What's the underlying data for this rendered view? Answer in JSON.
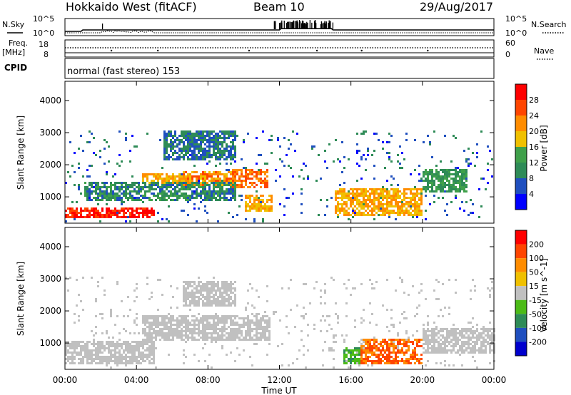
{
  "header": {
    "title": "Hokkaido West (fitACF)",
    "beam": "Beam 10",
    "date": "29/Aug/2017"
  },
  "top_panels": {
    "nsky_label": "N.Sky",
    "nsearch_label": "N.Search",
    "freq_label_1": "Freq.",
    "freq_label_2": "[MHz]",
    "nave_label": "Nave",
    "cpid_label": "CPID",
    "cpid_text": "normal (fast stereo) 153",
    "noise_ticks": [
      "10^5",
      "10^0"
    ],
    "freq_ticks": [
      "18",
      "8"
    ],
    "nave_ticks": [
      "60",
      "0"
    ]
  },
  "chart_data": [
    {
      "type": "heatmap",
      "title": "",
      "xlabel": "Time UT",
      "ylabel": "Slant Range [km]",
      "x_ticks": [
        "00:00",
        "04:00",
        "08:00",
        "12:00",
        "16:00",
        "20:00",
        "00:00"
      ],
      "xlim_hours": [
        0,
        24
      ],
      "y_ticks": [
        1000,
        2000,
        3000,
        4000
      ],
      "ylim": [
        180,
        4600
      ],
      "colorbar": {
        "label": "Power [dB]",
        "ticks": [
          4,
          8,
          12,
          16,
          20,
          24,
          28
        ],
        "range": [
          0,
          32
        ],
        "colors": [
          "#0000ff",
          "#1f4fbf",
          "#2e8b57",
          "#3fa04a",
          "#f0c000",
          "#ff8c00",
          "#ff4500",
          "#ff0000"
        ]
      },
      "regions": [
        {
          "t0": 0.0,
          "t1": 5.0,
          "r0": 380,
          "r1": 700,
          "value": 29
        },
        {
          "t0": 4.2,
          "t1": 6.6,
          "r0": 1450,
          "r1": 1750,
          "value": 20
        },
        {
          "t0": 6.5,
          "t1": 9.5,
          "r0": 1400,
          "r1": 1850,
          "value": 22
        },
        {
          "t0": 9.3,
          "t1": 11.3,
          "r0": 1300,
          "r1": 1900,
          "value": 24
        },
        {
          "t0": 10.0,
          "t1": 11.6,
          "r0": 600,
          "r1": 1100,
          "value": 20
        },
        {
          "t0": 15.0,
          "t1": 20.0,
          "r0": 450,
          "r1": 1300,
          "value": 20
        },
        {
          "t0": 20.0,
          "t1": 22.5,
          "r0": 1200,
          "r1": 1900,
          "value": 12
        },
        {
          "t0": 5.5,
          "t1": 9.5,
          "r0": 2200,
          "r1": 3100,
          "value": 8
        },
        {
          "t0": 1.0,
          "t1": 9.5,
          "r0": 900,
          "r1": 1500,
          "value": 10
        }
      ]
    },
    {
      "type": "heatmap",
      "title": "",
      "xlabel": "Time UT",
      "ylabel": "Slant Range [km]",
      "x_ticks": [
        "00:00",
        "04:00",
        "08:00",
        "12:00",
        "16:00",
        "20:00",
        "00:00"
      ],
      "xlim_hours": [
        0,
        24
      ],
      "y_ticks": [
        1000,
        2000,
        3000,
        4000
      ],
      "ylim": [
        180,
        4600
      ],
      "colorbar": {
        "label": "Velocity [m s^-1]",
        "ticks": [
          "200",
          "100",
          "50",
          "15",
          "-15",
          "-50",
          "-100",
          "-200"
        ],
        "colors": [
          "#0000cd",
          "#1f4fbf",
          "#2e8b57",
          "#4cbb17",
          "#c0c0c0",
          "#f0c000",
          "#ff8c00",
          "#ff4500",
          "#ff0000"
        ]
      },
      "regions": [
        {
          "t0": 0.0,
          "t1": 5.0,
          "r0": 380,
          "r1": 1100,
          "value": 0
        },
        {
          "t0": 4.2,
          "t1": 11.5,
          "r0": 1100,
          "r1": 1900,
          "value": 0
        },
        {
          "t0": 15.5,
          "t1": 17.0,
          "r0": 400,
          "r1": 900,
          "value": 30
        },
        {
          "t0": 16.5,
          "t1": 20.0,
          "r0": 400,
          "r1": 1200,
          "value": -75
        },
        {
          "t0": 20.0,
          "t1": 24.0,
          "r0": 700,
          "r1": 1500,
          "value": 0
        },
        {
          "t0": 6.5,
          "t1": 9.5,
          "r0": 2200,
          "r1": 3000,
          "value": 0
        }
      ]
    }
  ]
}
